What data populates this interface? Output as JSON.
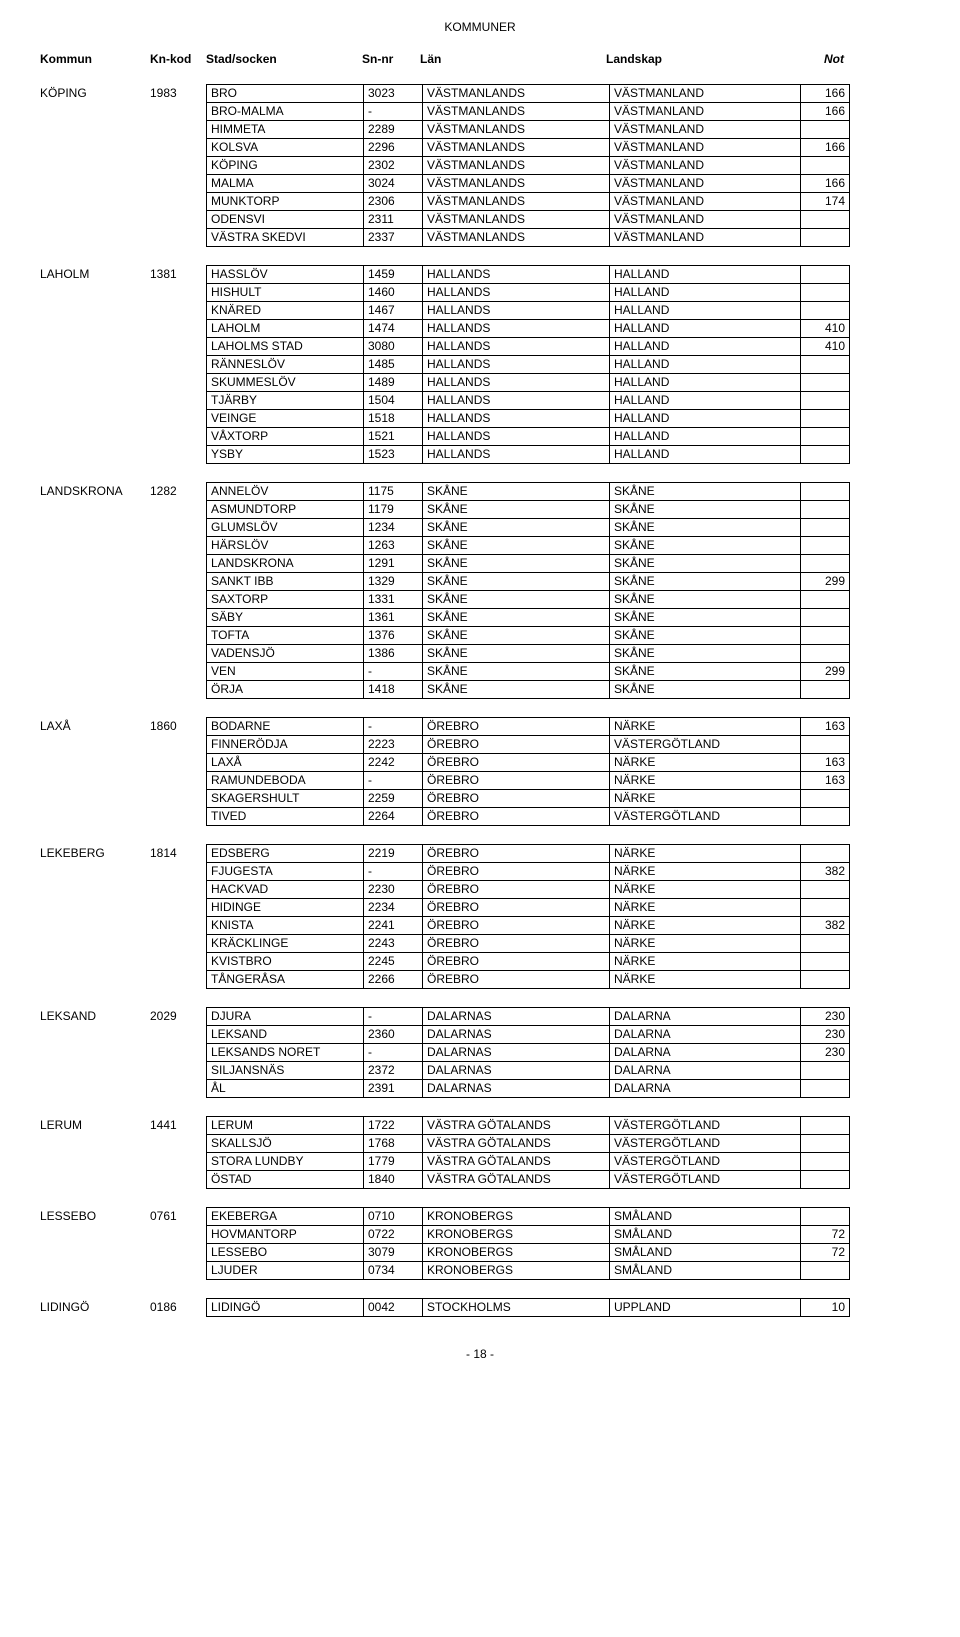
{
  "page_title": "KOMMUNER",
  "footer": "- 18 -",
  "headers": {
    "kommun": "Kommun",
    "knkod": "Kn-kod",
    "socken": "Stad/socken",
    "snnr": "Sn-nr",
    "lan": "Län",
    "landskap": "Landskap",
    "not": "Not"
  },
  "groups": [
    {
      "kommun": "KÖPING",
      "knkod": "1983",
      "rows": [
        {
          "socken": "BRO",
          "snnr": "3023",
          "lan": "VÄSTMANLANDS",
          "landskap": "VÄSTMANLAND",
          "not": "166"
        },
        {
          "socken": "BRO-MALMA",
          "snnr": "-",
          "lan": "VÄSTMANLANDS",
          "landskap": "VÄSTMANLAND",
          "not": "166"
        },
        {
          "socken": "HIMMETA",
          "snnr": "2289",
          "lan": "VÄSTMANLANDS",
          "landskap": "VÄSTMANLAND",
          "not": ""
        },
        {
          "socken": "KOLSVA",
          "snnr": "2296",
          "lan": "VÄSTMANLANDS",
          "landskap": "VÄSTMANLAND",
          "not": "166"
        },
        {
          "socken": "KÖPING",
          "snnr": "2302",
          "lan": "VÄSTMANLANDS",
          "landskap": "VÄSTMANLAND",
          "not": ""
        },
        {
          "socken": "MALMA",
          "snnr": "3024",
          "lan": "VÄSTMANLANDS",
          "landskap": "VÄSTMANLAND",
          "not": "166"
        },
        {
          "socken": "MUNKTORP",
          "snnr": "2306",
          "lan": "VÄSTMANLANDS",
          "landskap": "VÄSTMANLAND",
          "not": "174"
        },
        {
          "socken": "ODENSVI",
          "snnr": "2311",
          "lan": "VÄSTMANLANDS",
          "landskap": "VÄSTMANLAND",
          "not": ""
        },
        {
          "socken": "VÄSTRA SKEDVI",
          "snnr": "2337",
          "lan": "VÄSTMANLANDS",
          "landskap": "VÄSTMANLAND",
          "not": ""
        }
      ]
    },
    {
      "kommun": "LAHOLM",
      "knkod": "1381",
      "rows": [
        {
          "socken": "HASSLÖV",
          "snnr": "1459",
          "lan": "HALLANDS",
          "landskap": "HALLAND",
          "not": ""
        },
        {
          "socken": "HISHULT",
          "snnr": "1460",
          "lan": "HALLANDS",
          "landskap": "HALLAND",
          "not": ""
        },
        {
          "socken": "KNÄRED",
          "snnr": "1467",
          "lan": "HALLANDS",
          "landskap": "HALLAND",
          "not": ""
        },
        {
          "socken": "LAHOLM",
          "snnr": "1474",
          "lan": "HALLANDS",
          "landskap": "HALLAND",
          "not": "410"
        },
        {
          "socken": "LAHOLMS STAD",
          "snnr": "3080",
          "lan": "HALLANDS",
          "landskap": "HALLAND",
          "not": "410"
        },
        {
          "socken": "RÄNNESLÖV",
          "snnr": "1485",
          "lan": "HALLANDS",
          "landskap": "HALLAND",
          "not": ""
        },
        {
          "socken": "SKUMMESLÖV",
          "snnr": "1489",
          "lan": "HALLANDS",
          "landskap": "HALLAND",
          "not": ""
        },
        {
          "socken": "TJÄRBY",
          "snnr": "1504",
          "lan": "HALLANDS",
          "landskap": "HALLAND",
          "not": ""
        },
        {
          "socken": "VEINGE",
          "snnr": "1518",
          "lan": "HALLANDS",
          "landskap": "HALLAND",
          "not": ""
        },
        {
          "socken": "VÅXTORP",
          "snnr": "1521",
          "lan": "HALLANDS",
          "landskap": "HALLAND",
          "not": ""
        },
        {
          "socken": "YSBY",
          "snnr": "1523",
          "lan": "HALLANDS",
          "landskap": "HALLAND",
          "not": ""
        }
      ]
    },
    {
      "kommun": "LANDSKRONA",
      "knkod": "1282",
      "rows": [
        {
          "socken": "ANNELÖV",
          "snnr": "1175",
          "lan": "SKÅNE",
          "landskap": "SKÅNE",
          "not": ""
        },
        {
          "socken": "ASMUNDTORP",
          "snnr": "1179",
          "lan": "SKÅNE",
          "landskap": "SKÅNE",
          "not": ""
        },
        {
          "socken": "GLUMSLÖV",
          "snnr": "1234",
          "lan": "SKÅNE",
          "landskap": "SKÅNE",
          "not": ""
        },
        {
          "socken": "HÄRSLÖV",
          "snnr": "1263",
          "lan": "SKÅNE",
          "landskap": "SKÅNE",
          "not": ""
        },
        {
          "socken": "LANDSKRONA",
          "snnr": "1291",
          "lan": "SKÅNE",
          "landskap": "SKÅNE",
          "not": ""
        },
        {
          "socken": "SANKT IBB",
          "snnr": "1329",
          "lan": "SKÅNE",
          "landskap": "SKÅNE",
          "not": "299"
        },
        {
          "socken": "SAXTORP",
          "snnr": "1331",
          "lan": "SKÅNE",
          "landskap": "SKÅNE",
          "not": ""
        },
        {
          "socken": "SÄBY",
          "snnr": "1361",
          "lan": "SKÅNE",
          "landskap": "SKÅNE",
          "not": ""
        },
        {
          "socken": "TOFTA",
          "snnr": "1376",
          "lan": "SKÅNE",
          "landskap": "SKÅNE",
          "not": ""
        },
        {
          "socken": "VADENSJÖ",
          "snnr": "1386",
          "lan": "SKÅNE",
          "landskap": "SKÅNE",
          "not": ""
        },
        {
          "socken": "VEN",
          "snnr": "-",
          "lan": "SKÅNE",
          "landskap": "SKÅNE",
          "not": "299"
        },
        {
          "socken": "ÖRJA",
          "snnr": "1418",
          "lan": "SKÅNE",
          "landskap": "SKÅNE",
          "not": ""
        }
      ]
    },
    {
      "kommun": "LAXÅ",
      "knkod": "1860",
      "rows": [
        {
          "socken": "BODARNE",
          "snnr": "-",
          "lan": "ÖREBRO",
          "landskap": "NÄRKE",
          "not": "163"
        },
        {
          "socken": "FINNERÖDJA",
          "snnr": "2223",
          "lan": "ÖREBRO",
          "landskap": "VÄSTERGÖTLAND",
          "not": ""
        },
        {
          "socken": "LAXÅ",
          "snnr": "2242",
          "lan": "ÖREBRO",
          "landskap": "NÄRKE",
          "not": "163"
        },
        {
          "socken": "RAMUNDEBODA",
          "snnr": "-",
          "lan": "ÖREBRO",
          "landskap": "NÄRKE",
          "not": "163"
        },
        {
          "socken": "SKAGERSHULT",
          "snnr": "2259",
          "lan": "ÖREBRO",
          "landskap": "NÄRKE",
          "not": ""
        },
        {
          "socken": "TIVED",
          "snnr": "2264",
          "lan": "ÖREBRO",
          "landskap": "VÄSTERGÖTLAND",
          "not": ""
        }
      ]
    },
    {
      "kommun": "LEKEBERG",
      "knkod": "1814",
      "rows": [
        {
          "socken": "EDSBERG",
          "snnr": "2219",
          "lan": "ÖREBRO",
          "landskap": "NÄRKE",
          "not": ""
        },
        {
          "socken": "FJUGESTA",
          "snnr": "-",
          "lan": "ÖREBRO",
          "landskap": "NÄRKE",
          "not": "382"
        },
        {
          "socken": "HACKVAD",
          "snnr": "2230",
          "lan": "ÖREBRO",
          "landskap": "NÄRKE",
          "not": ""
        },
        {
          "socken": "HIDINGE",
          "snnr": "2234",
          "lan": "ÖREBRO",
          "landskap": "NÄRKE",
          "not": ""
        },
        {
          "socken": "KNISTA",
          "snnr": "2241",
          "lan": "ÖREBRO",
          "landskap": "NÄRKE",
          "not": "382"
        },
        {
          "socken": "KRÄCKLINGE",
          "snnr": "2243",
          "lan": "ÖREBRO",
          "landskap": "NÄRKE",
          "not": ""
        },
        {
          "socken": "KVISTBRO",
          "snnr": "2245",
          "lan": "ÖREBRO",
          "landskap": "NÄRKE",
          "not": ""
        },
        {
          "socken": "TÅNGERÅSA",
          "snnr": "2266",
          "lan": "ÖREBRO",
          "landskap": "NÄRKE",
          "not": ""
        }
      ]
    },
    {
      "kommun": "LEKSAND",
      "knkod": "2029",
      "rows": [
        {
          "socken": "DJURA",
          "snnr": "-",
          "lan": "DALARNAS",
          "landskap": "DALARNA",
          "not": "230"
        },
        {
          "socken": "LEKSAND",
          "snnr": "2360",
          "lan": "DALARNAS",
          "landskap": "DALARNA",
          "not": "230"
        },
        {
          "socken": "LEKSANDS NORET",
          "snnr": "-",
          "lan": "DALARNAS",
          "landskap": "DALARNA",
          "not": "230"
        },
        {
          "socken": "SILJANSNÄS",
          "snnr": "2372",
          "lan": "DALARNAS",
          "landskap": "DALARNA",
          "not": ""
        },
        {
          "socken": "ÅL",
          "snnr": "2391",
          "lan": "DALARNAS",
          "landskap": "DALARNA",
          "not": ""
        }
      ]
    },
    {
      "kommun": "LERUM",
      "knkod": "1441",
      "rows": [
        {
          "socken": "LERUM",
          "snnr": "1722",
          "lan": "VÄSTRA GÖTALANDS",
          "landskap": "VÄSTERGÖTLAND",
          "not": ""
        },
        {
          "socken": "SKALLSJÖ",
          "snnr": "1768",
          "lan": "VÄSTRA GÖTALANDS",
          "landskap": "VÄSTERGÖTLAND",
          "not": ""
        },
        {
          "socken": "STORA LUNDBY",
          "snnr": "1779",
          "lan": "VÄSTRA GÖTALANDS",
          "landskap": "VÄSTERGÖTLAND",
          "not": ""
        },
        {
          "socken": "ÖSTAD",
          "snnr": "1840",
          "lan": "VÄSTRA GÖTALANDS",
          "landskap": "VÄSTERGÖTLAND",
          "not": ""
        }
      ]
    },
    {
      "kommun": "LESSEBO",
      "knkod": "0761",
      "rows": [
        {
          "socken": "EKEBERGA",
          "snnr": "0710",
          "lan": "KRONOBERGS",
          "landskap": "SMÅLAND",
          "not": ""
        },
        {
          "socken": "HOVMANTORP",
          "snnr": "0722",
          "lan": "KRONOBERGS",
          "landskap": "SMÅLAND",
          "not": "72"
        },
        {
          "socken": "LESSEBO",
          "snnr": "3079",
          "lan": "KRONOBERGS",
          "landskap": "SMÅLAND",
          "not": "72"
        },
        {
          "socken": "LJUDER",
          "snnr": "0734",
          "lan": "KRONOBERGS",
          "landskap": "SMÅLAND",
          "not": ""
        }
      ]
    },
    {
      "kommun": "LIDINGÖ",
      "knkod": "0186",
      "rows": [
        {
          "socken": "LIDINGÖ",
          "snnr": "0042",
          "lan": "STOCKHOLMS",
          "landskap": "UPPLAND",
          "not": "10"
        }
      ]
    }
  ]
}
